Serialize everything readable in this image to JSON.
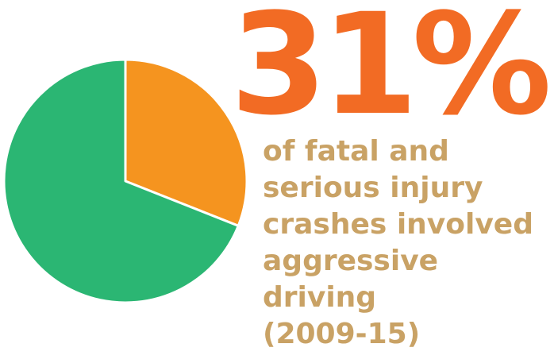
{
  "headline": {
    "stat": "31%",
    "color": "#f26b24"
  },
  "caption": {
    "lines": [
      "of fatal and",
      "serious injury",
      "crashes involved",
      "aggressive",
      "driving",
      "(2009-15)"
    ],
    "color": "#c9a265"
  },
  "chart_data": {
    "type": "pie",
    "title": "",
    "slices": [
      {
        "value": 31,
        "color": "#f5941f"
      },
      {
        "value": 69,
        "color": "#2bb673"
      }
    ],
    "start_angle_deg": 0,
    "direction": "clockwise",
    "slice_border_color": "#ffffff"
  }
}
